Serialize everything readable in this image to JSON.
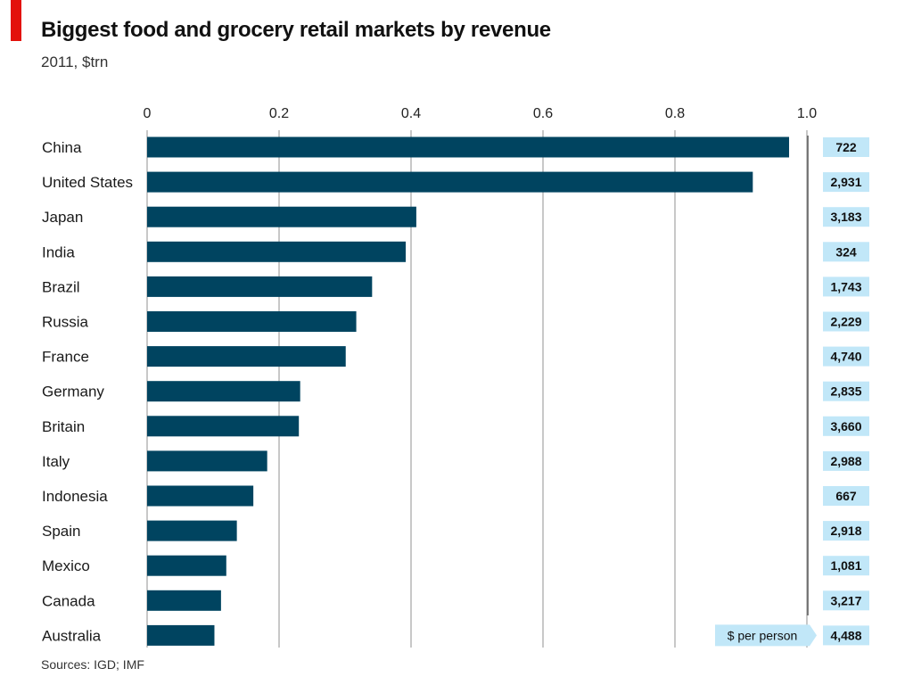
{
  "header": {
    "title": "Biggest food and grocery retail markets by revenue",
    "subtitle": "2011, $trn"
  },
  "footer": {
    "source": "Sources: IGD; IMF"
  },
  "colors": {
    "accent_red": "#e3120b",
    "bar": "#004460",
    "gridline": "#c8c8c8",
    "side_box": "#c1e7f8"
  },
  "chart_data": {
    "type": "bar",
    "orientation": "horizontal",
    "title": "Biggest food and grocery retail markets by revenue",
    "subtitle": "2011, $trn",
    "xlim": [
      0,
      1.0
    ],
    "x_ticks": [
      "0",
      "0.2",
      "0.4",
      "0.6",
      "0.8",
      "1.0"
    ],
    "x_tick_values": [
      0,
      0.2,
      0.4,
      0.6,
      0.8,
      1.0
    ],
    "grid": true,
    "categories": [
      "China",
      "United States",
      "Japan",
      "India",
      "Brazil",
      "Russia",
      "France",
      "Germany",
      "Britain",
      "Italy",
      "Indonesia",
      "Spain",
      "Mexico",
      "Canada",
      "Australia"
    ],
    "series": [
      {
        "values": [
          0.973,
          0.918,
          0.408,
          0.392,
          0.341,
          0.317,
          0.301,
          0.232,
          0.23,
          0.182,
          0.161,
          0.136,
          0.12,
          0.112,
          0.102
        ]
      }
    ],
    "side_column": {
      "label": "$ per person",
      "values": [
        "722",
        "2,931",
        "3,183",
        "324",
        "1,743",
        "2,229",
        "4,740",
        "2,835",
        "3,660",
        "2,988",
        "667",
        "2,918",
        "1,081",
        "3,217",
        "4,488"
      ]
    },
    "source": "Sources: IGD; IMF"
  }
}
